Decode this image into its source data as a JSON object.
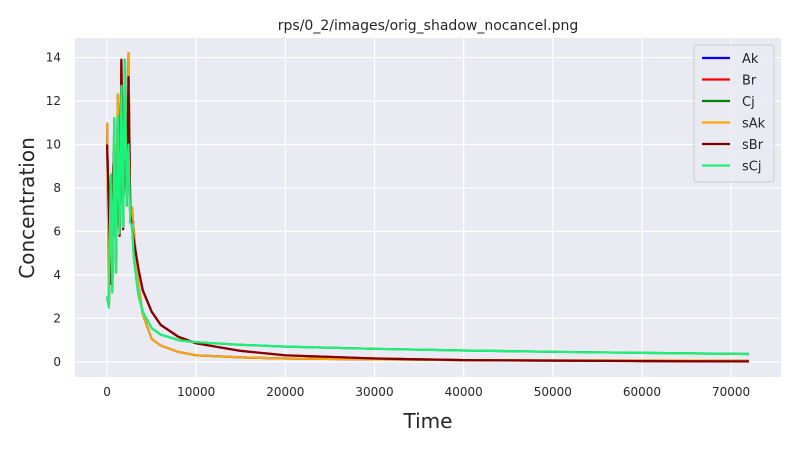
{
  "chart_data": {
    "type": "line",
    "title": "rps/0_2/images/orig_shadow_nocancel.png",
    "xlabel": "Time",
    "ylabel": "Concentration",
    "xlim": [
      -3600,
      75600
    ],
    "ylim": [
      -0.7,
      14.9
    ],
    "xticks": [
      0,
      10000,
      20000,
      30000,
      40000,
      50000,
      60000,
      70000
    ],
    "yticks": [
      0,
      2,
      4,
      6,
      8,
      10,
      12,
      14
    ],
    "grid": true,
    "legend_position": "top-right",
    "background": "#eaeaf2",
    "series": [
      {
        "name": "Ak",
        "color": "#0000ff",
        "x": [
          0,
          200,
          400,
          600,
          800,
          1000,
          1200,
          1400,
          1600,
          1800,
          2000,
          2200,
          2400,
          2600,
          2800,
          3000,
          3500,
          4000,
          5000,
          6000,
          8000,
          10000,
          15000,
          20000,
          30000,
          40000,
          50000,
          60000,
          72000
        ],
        "values": [
          11.0,
          2.6,
          8.6,
          3.6,
          10.1,
          5.1,
          12.3,
          6.3,
          13.6,
          6.6,
          13.9,
          7.6,
          14.2,
          6.6,
          7.1,
          6.0,
          3.6,
          2.2,
          1.05,
          0.75,
          0.45,
          0.3,
          0.2,
          0.15,
          0.11,
          0.08,
          0.07,
          0.06,
          0.05
        ]
      },
      {
        "name": "Br",
        "color": "#ff0000",
        "x": [
          0,
          200,
          400,
          600,
          800,
          1000,
          1200,
          1400,
          1600,
          1800,
          2000,
          2200,
          2400,
          2600,
          2800,
          3000,
          3500,
          4000,
          5000,
          6000,
          8000,
          10000,
          15000,
          20000,
          30000,
          40000,
          50000,
          60000,
          72000
        ],
        "values": [
          10.0,
          7.0,
          3.6,
          8.1,
          9.8,
          4.6,
          10.8,
          5.8,
          13.9,
          6.1,
          13.4,
          7.2,
          13.1,
          6.8,
          6.2,
          5.6,
          4.3,
          3.3,
          2.3,
          1.7,
          1.15,
          0.85,
          0.5,
          0.3,
          0.15,
          0.08,
          0.05,
          0.03,
          0.02
        ]
      },
      {
        "name": "Cj",
        "color": "#008000",
        "x": [
          0,
          200,
          400,
          600,
          800,
          1000,
          1200,
          1400,
          1600,
          1800,
          2000,
          2200,
          2400,
          2600,
          2800,
          3000,
          3500,
          4000,
          5000,
          6000,
          8000,
          10000,
          15000,
          20000,
          30000,
          40000,
          50000,
          60000,
          72000
        ],
        "values": [
          3.0,
          2.5,
          8.6,
          3.2,
          11.2,
          4.1,
          11.3,
          5.9,
          12.7,
          6.2,
          13.9,
          7.2,
          10.0,
          6.4,
          6.3,
          4.8,
          3.1,
          2.3,
          1.55,
          1.25,
          1.0,
          0.9,
          0.78,
          0.7,
          0.6,
          0.52,
          0.46,
          0.41,
          0.36
        ]
      },
      {
        "name": "sAk",
        "color": "#ffa500",
        "x": [
          0,
          200,
          400,
          600,
          800,
          1000,
          1200,
          1400,
          1600,
          1800,
          2000,
          2200,
          2400,
          2600,
          2800,
          3000,
          3500,
          4000,
          5000,
          6000,
          8000,
          10000,
          15000,
          20000,
          30000,
          40000,
          50000,
          60000,
          72000
        ],
        "values": [
          11.0,
          2.6,
          8.6,
          3.6,
          10.1,
          5.1,
          12.3,
          6.3,
          13.6,
          6.6,
          13.9,
          7.6,
          14.2,
          6.6,
          7.1,
          6.0,
          3.6,
          2.2,
          1.05,
          0.75,
          0.45,
          0.3,
          0.2,
          0.15,
          0.11,
          0.08,
          0.07,
          0.06,
          0.05
        ]
      },
      {
        "name": "sBr",
        "color": "#800000",
        "x": [
          0,
          200,
          400,
          600,
          800,
          1000,
          1200,
          1400,
          1600,
          1800,
          2000,
          2200,
          2400,
          2600,
          2800,
          3000,
          3500,
          4000,
          5000,
          6000,
          8000,
          10000,
          15000,
          20000,
          30000,
          40000,
          50000,
          60000,
          72000
        ],
        "values": [
          10.0,
          7.0,
          3.6,
          8.1,
          9.8,
          4.6,
          10.8,
          5.8,
          13.9,
          6.1,
          13.4,
          7.2,
          13.1,
          6.8,
          6.2,
          5.6,
          4.3,
          3.3,
          2.3,
          1.7,
          1.15,
          0.85,
          0.5,
          0.3,
          0.15,
          0.08,
          0.05,
          0.03,
          0.02
        ]
      },
      {
        "name": "sCj",
        "color": "#1ef07a",
        "x": [
          0,
          200,
          400,
          600,
          800,
          1000,
          1200,
          1400,
          1600,
          1800,
          2000,
          2200,
          2400,
          2600,
          2800,
          3000,
          3500,
          4000,
          5000,
          6000,
          8000,
          10000,
          15000,
          20000,
          30000,
          40000,
          50000,
          60000,
          72000
        ],
        "values": [
          3.0,
          2.5,
          8.6,
          3.2,
          11.2,
          4.1,
          11.3,
          5.9,
          12.7,
          6.2,
          13.9,
          7.2,
          10.0,
          6.4,
          6.3,
          4.8,
          3.1,
          2.3,
          1.55,
          1.25,
          1.0,
          0.9,
          0.78,
          0.7,
          0.6,
          0.52,
          0.46,
          0.41,
          0.36
        ]
      }
    ]
  }
}
